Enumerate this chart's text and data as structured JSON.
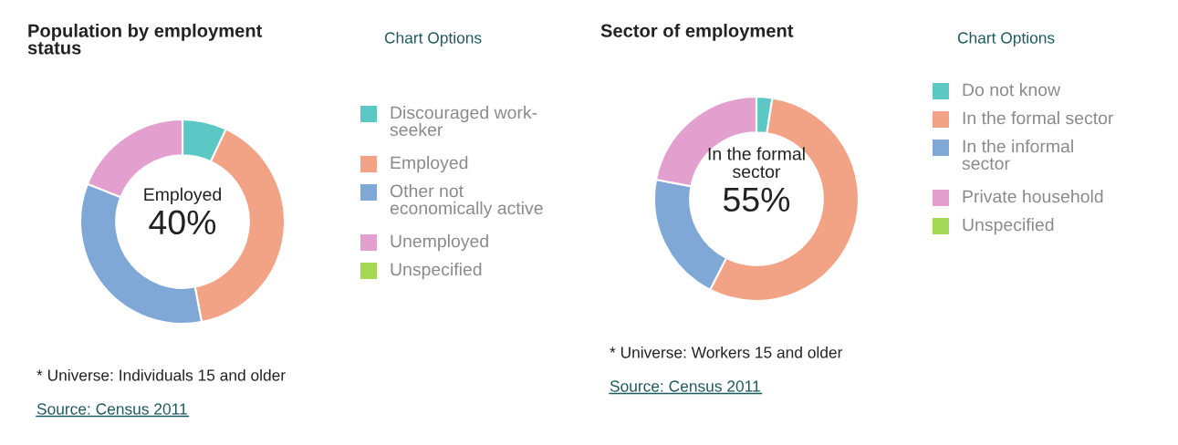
{
  "chart_data": [
    {
      "type": "donut",
      "title": "Population by employment status",
      "categories": [
        "Discouraged work-seeker",
        "Employed",
        "Other not economically active",
        "Unemployed",
        "Unspecified"
      ],
      "values": [
        7,
        40,
        34,
        19,
        0
      ],
      "colors": [
        "#5bc8c5",
        "#f2a385",
        "#7fa8d6",
        "#e39fcd",
        "#a3d955"
      ],
      "legend": "right",
      "annotations": [
        "Chart Options",
        "Employed",
        "40%",
        "* Universe: Individuals 15 and older",
        "Source: Census 2011"
      ]
    },
    {
      "type": "donut",
      "title": "Sector of employment",
      "categories": [
        "Do not know",
        "In the formal sector",
        "In the informal sector",
        "Private household",
        "Unspecified"
      ],
      "values": [
        2.5,
        55,
        20.5,
        22,
        0
      ],
      "colors": [
        "#5bc8c5",
        "#f2a385",
        "#7fa8d6",
        "#e39fcd",
        "#a3d955"
      ],
      "legend": "right",
      "annotations": [
        "Chart Options",
        "In the formal sector",
        "55%",
        "* Universe: Workers 15 and older",
        "Source: Census 2011"
      ]
    }
  ]
}
